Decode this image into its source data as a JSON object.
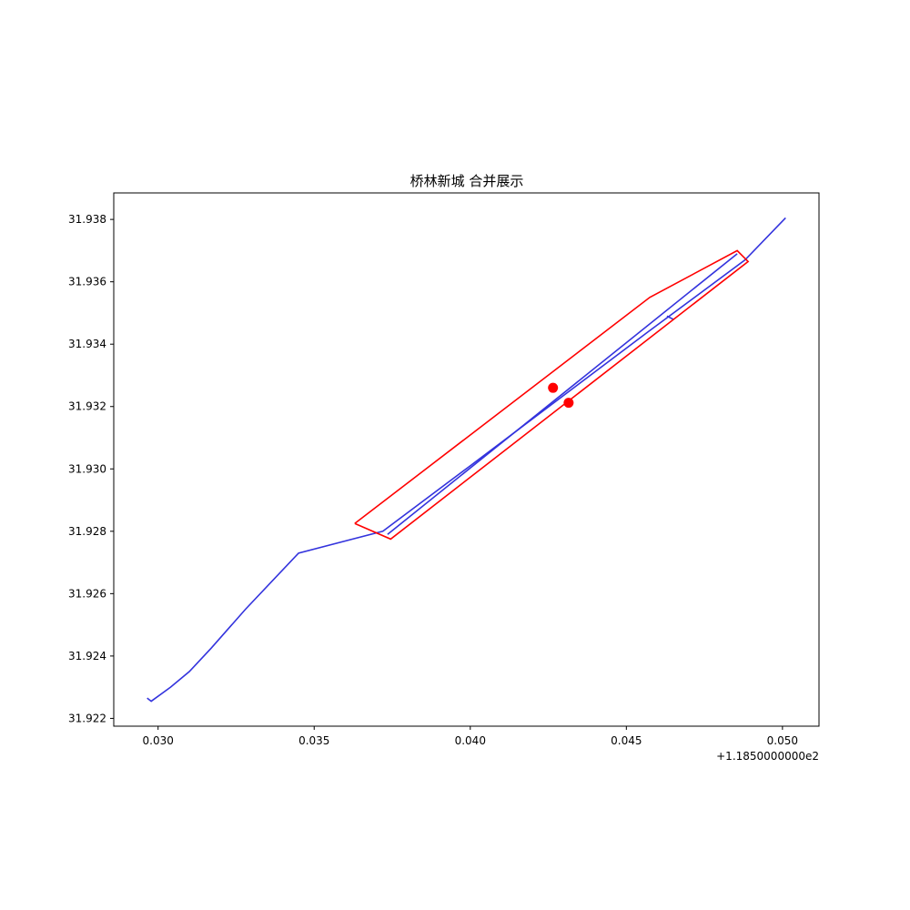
{
  "chart_data": {
    "type": "line",
    "title": "桥林新城 合并展示",
    "xlabel": "",
    "ylabel": "",
    "x_offset_text": "+1.1850000000e2",
    "x_offset_value": 118.5,
    "xlim": [
      0.02858,
      0.05117
    ],
    "ylim": [
      31.92175,
      31.93885
    ],
    "x_ticks": [
      0.03,
      0.035,
      0.04,
      0.045,
      0.05
    ],
    "x_tick_labels": [
      "0.030",
      "0.035",
      "0.040",
      "0.045",
      "0.050"
    ],
    "y_ticks": [
      31.922,
      31.924,
      31.926,
      31.928,
      31.93,
      31.932,
      31.934,
      31.936,
      31.938
    ],
    "y_tick_labels": [
      "31.922",
      "31.924",
      "31.926",
      "31.928",
      "31.930",
      "31.932",
      "31.934",
      "31.936",
      "31.938"
    ],
    "grid": false,
    "series": [
      {
        "color": "#3333dd",
        "x": [
          0.02965,
          0.02978,
          0.0304,
          0.031,
          0.0317,
          0.0328,
          0.0345,
          0.0372,
          0.04,
          0.0457,
          0.0488,
          0.0501
        ],
        "y": [
          31.92265,
          31.92255,
          31.923,
          31.9235,
          31.92425,
          31.9255,
          31.9273,
          31.928,
          31.9301,
          31.9344,
          31.9367,
          31.93805
        ]
      },
      {
        "color": "#3333dd",
        "x": [
          0.03735,
          0.04855
        ],
        "y": [
          31.9279,
          31.9369
        ]
      },
      {
        "color": "#3333dd",
        "x": [
          0.0463,
          0.0465
        ],
        "y": [
          31.9349,
          31.9348
        ]
      },
      {
        "color": "#ff0000",
        "x": [
          0.0363,
          0.04575,
          0.04855,
          0.0489,
          0.03745,
          0.0363
        ],
        "y": [
          31.92825,
          31.9355,
          31.937,
          31.93665,
          31.92775,
          31.92825
        ]
      },
      {
        "type": "scatter",
        "color": "#ff0000",
        "x": [
          0.04265,
          0.04315
        ],
        "y": [
          31.9326,
          31.93212
        ]
      }
    ]
  }
}
